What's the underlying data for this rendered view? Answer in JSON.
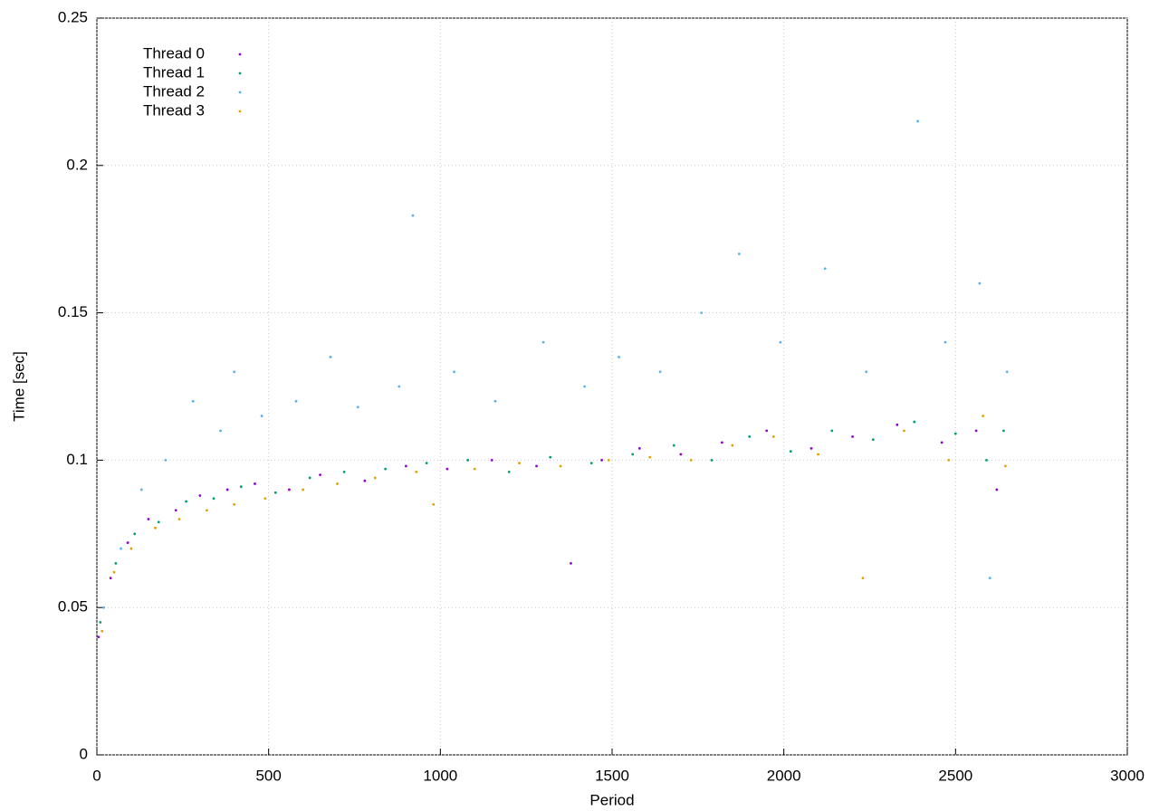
{
  "chart_data": {
    "type": "scatter",
    "xlabel": "Period",
    "ylabel": "Time [sec]",
    "xlim": [
      0,
      3000
    ],
    "ylim": [
      0,
      0.25
    ],
    "xticks": [
      0,
      500,
      1000,
      1500,
      2000,
      2500,
      3000
    ],
    "yticks": [
      0,
      0.05,
      0.1,
      0.15,
      0.2,
      0.25
    ],
    "grid": true,
    "legend": "top-left",
    "series": [
      {
        "name": "Thread 0",
        "color": "#9400d3",
        "x": [
          5,
          40,
          90,
          150,
          230,
          300,
          380,
          460,
          560,
          650,
          780,
          900,
          1020,
          1150,
          1280,
          1380,
          1470,
          1580,
          1700,
          1820,
          1950,
          2080,
          2200,
          2330,
          2460,
          2560,
          2620
        ],
        "y": [
          0.04,
          0.06,
          0.072,
          0.08,
          0.083,
          0.088,
          0.09,
          0.092,
          0.09,
          0.095,
          0.093,
          0.098,
          0.097,
          0.1,
          0.098,
          0.065,
          0.1,
          0.104,
          0.102,
          0.106,
          0.11,
          0.104,
          0.108,
          0.112,
          0.106,
          0.11,
          0.09
        ]
      },
      {
        "name": "Thread 1",
        "color": "#009e73",
        "x": [
          10,
          55,
          110,
          180,
          260,
          340,
          420,
          520,
          620,
          720,
          840,
          960,
          1080,
          1200,
          1320,
          1440,
          1560,
          1680,
          1790,
          1900,
          2020,
          2140,
          2260,
          2380,
          2500,
          2590,
          2640
        ],
        "y": [
          0.045,
          0.065,
          0.075,
          0.079,
          0.086,
          0.087,
          0.091,
          0.089,
          0.094,
          0.096,
          0.097,
          0.099,
          0.1,
          0.096,
          0.101,
          0.099,
          0.102,
          0.105,
          0.1,
          0.108,
          0.103,
          0.11,
          0.107,
          0.113,
          0.109,
          0.1,
          0.11
        ]
      },
      {
        "name": "Thread 2",
        "color": "#56b4e9",
        "x": [
          20,
          70,
          130,
          200,
          280,
          360,
          400,
          480,
          580,
          680,
          760,
          880,
          920,
          1040,
          1160,
          1300,
          1420,
          1520,
          1640,
          1760,
          1870,
          1990,
          2120,
          2240,
          2390,
          2470,
          2570,
          2600,
          2650
        ],
        "y": [
          0.05,
          0.07,
          0.09,
          0.1,
          0.12,
          0.11,
          0.13,
          0.115,
          0.12,
          0.135,
          0.118,
          0.125,
          0.183,
          0.13,
          0.12,
          0.14,
          0.125,
          0.135,
          0.13,
          0.15,
          0.17,
          0.14,
          0.165,
          0.13,
          0.215,
          0.14,
          0.16,
          0.06,
          0.13
        ]
      },
      {
        "name": "Thread 3",
        "color": "#e69f00",
        "x": [
          15,
          50,
          100,
          170,
          240,
          320,
          400,
          490,
          600,
          700,
          810,
          930,
          980,
          1100,
          1230,
          1350,
          1490,
          1610,
          1730,
          1850,
          1970,
          2100,
          2230,
          2350,
          2480,
          2580,
          2645
        ],
        "y": [
          0.042,
          0.062,
          0.07,
          0.077,
          0.08,
          0.083,
          0.085,
          0.087,
          0.09,
          0.092,
          0.094,
          0.096,
          0.085,
          0.097,
          0.099,
          0.098,
          0.1,
          0.101,
          0.1,
          0.105,
          0.108,
          0.102,
          0.06,
          0.11,
          0.1,
          0.115,
          0.098
        ]
      }
    ]
  }
}
